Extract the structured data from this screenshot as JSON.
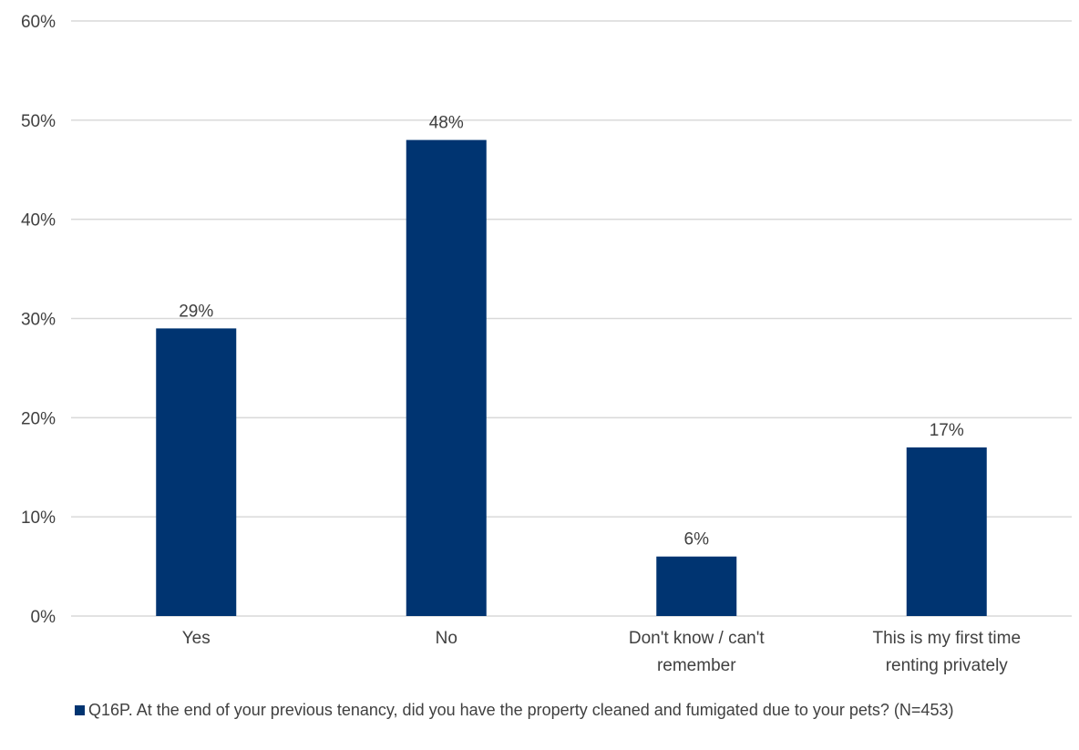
{
  "chart_data": {
    "type": "bar",
    "categories": [
      [
        "Yes"
      ],
      [
        "No"
      ],
      [
        "Don't know / can't",
        "remember"
      ],
      [
        "This is my first time",
        "renting privately"
      ]
    ],
    "series": [
      {
        "name": "Q16P. At the end of your previous tenancy, did you have the property cleaned and fumigated due to your pets? (N=453)",
        "values": [
          29,
          48,
          6,
          17
        ],
        "labels": [
          "29%",
          "48%",
          "6%",
          "17%"
        ],
        "color": "#003471"
      }
    ],
    "ylim": [
      0,
      60
    ],
    "yticks": [
      "0%",
      "10%",
      "20%",
      "30%",
      "40%",
      "50%",
      "60%"
    ],
    "grid": true,
    "legend_position": "bottom"
  },
  "colors": {
    "bar": "#003471",
    "grid": "#d9d9d9",
    "text": "#404040"
  }
}
